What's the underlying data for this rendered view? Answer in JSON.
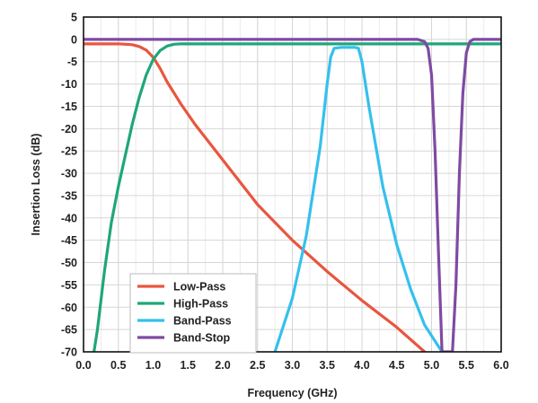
{
  "chart_data": {
    "type": "line",
    "title": "",
    "xlabel": "Frequency (GHz)",
    "ylabel": "Insertion Loss (dB)",
    "xlim": [
      0,
      6
    ],
    "ylim": [
      -70,
      5
    ],
    "x_ticks": [
      0,
      0.5,
      1.0,
      1.5,
      2.0,
      2.5,
      3.0,
      3.5,
      4.0,
      4.5,
      5.0,
      5.5,
      6.0
    ],
    "x_tick_labels": [
      "0.0",
      "0.5",
      "1.0",
      "1.5",
      "2.0",
      "2.5",
      "3.0",
      "3.5",
      "4.0",
      "4.5",
      "5.0",
      "5.5",
      "6.0"
    ],
    "y_ticks": [
      5,
      0,
      -5,
      -10,
      -15,
      -20,
      -25,
      -30,
      -35,
      -40,
      -45,
      -50,
      -55,
      -60,
      -65,
      -70
    ],
    "y_tick_labels": [
      "5",
      "0",
      "-5",
      "-10",
      "-15",
      "-20",
      "-25",
      "-30",
      "-35",
      "-40",
      "-45",
      "-50",
      "-55",
      "-60",
      "-65",
      "-70"
    ],
    "grid": true,
    "x_minor_grid_step": 0.25,
    "legend_position": "bottom-left",
    "series": [
      {
        "name": "Low-Pass",
        "color": "#e8563f",
        "x": [
          0,
          0.5,
          0.7,
          0.8,
          0.9,
          1.0,
          1.1,
          1.2,
          1.4,
          1.6,
          1.8,
          2.0,
          2.2,
          2.5,
          3.0,
          3.5,
          4.0,
          4.5,
          4.9
        ],
        "y": [
          -1,
          -1,
          -1.2,
          -1.6,
          -2.4,
          -4,
          -6.5,
          -9.5,
          -14.5,
          -19,
          -23,
          -27,
          -31,
          -37,
          -45,
          -52,
          -58.5,
          -64.5,
          -70
        ]
      },
      {
        "name": "High-Pass",
        "color": "#1fa67a",
        "x": [
          0.15,
          0.2,
          0.3,
          0.4,
          0.5,
          0.6,
          0.7,
          0.8,
          0.9,
          1.0,
          1.1,
          1.2,
          1.3,
          1.4,
          1.5,
          2.0,
          3.0,
          4.0,
          5.0,
          6.0
        ],
        "y": [
          -70,
          -65,
          -52,
          -41,
          -33,
          -26,
          -19,
          -13,
          -8,
          -4.5,
          -2.5,
          -1.5,
          -1.1,
          -1,
          -1,
          -1,
          -1,
          -1,
          -1,
          -1
        ]
      },
      {
        "name": "Band-Pass",
        "color": "#35c0ec",
        "x": [
          2.75,
          3.0,
          3.2,
          3.4,
          3.5,
          3.55,
          3.6,
          3.7,
          3.8,
          3.9,
          3.95,
          4.0,
          4.1,
          4.3,
          4.5,
          4.7,
          4.9,
          5.15
        ],
        "y": [
          -70,
          -58,
          -44,
          -24,
          -10,
          -4,
          -2,
          -1.8,
          -1.8,
          -1.8,
          -2,
          -5,
          -15,
          -33,
          -46,
          -56,
          -64,
          -70
        ]
      },
      {
        "name": "Band-Stop",
        "color": "#7f4aa3",
        "x": [
          0,
          1,
          2,
          3,
          4,
          4.8,
          4.9,
          4.95,
          5.0,
          5.05,
          5.1,
          5.15,
          5.2,
          5.25,
          5.3,
          5.35,
          5.4,
          5.45,
          5.5,
          5.55,
          5.6,
          5.7,
          6.0
        ],
        "y": [
          0,
          0,
          0,
          0,
          0,
          0,
          -0.5,
          -2,
          -8,
          -25,
          -48,
          -70,
          -70,
          -70,
          -70,
          -55,
          -30,
          -12,
          -3,
          -0.5,
          0,
          0,
          0
        ]
      }
    ]
  }
}
